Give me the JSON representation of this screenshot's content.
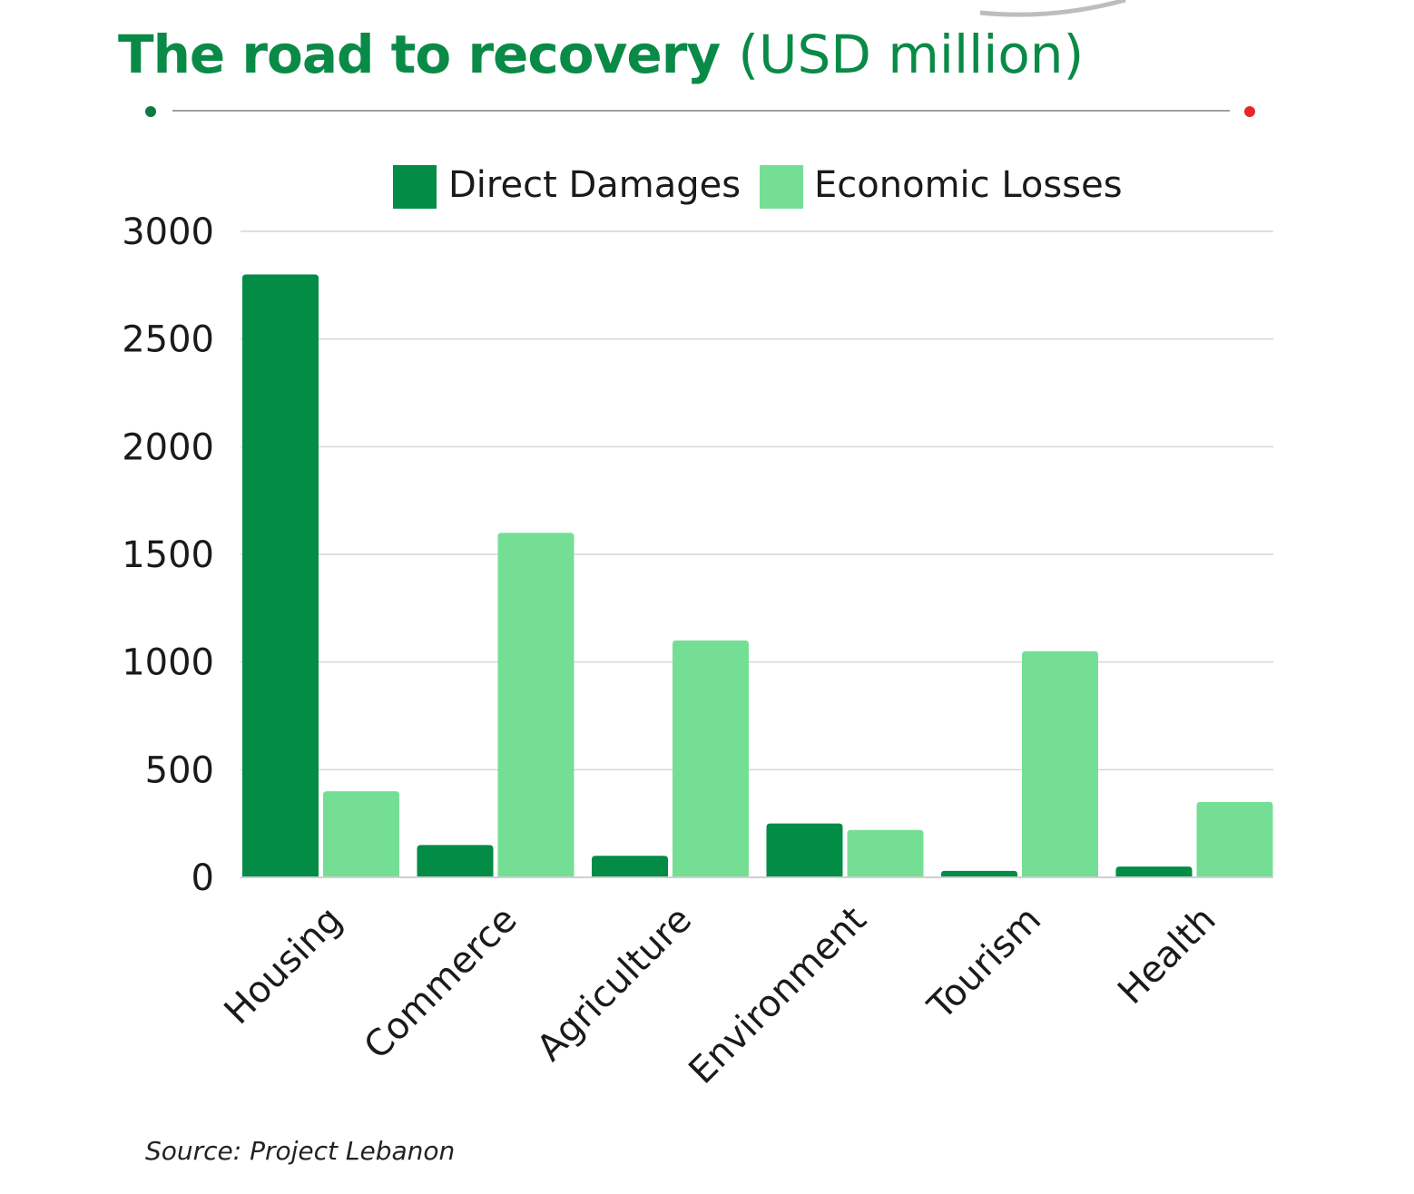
{
  "header": {
    "title_bold": "The road to recovery",
    "title_unit": "(USD million)"
  },
  "colors": {
    "title": "#0a8a47",
    "direct_damages": "#038c45",
    "economic_losses": "#74df94",
    "divider_left_dot": "#0b7a45",
    "divider_right_dot": "#e8262a",
    "gridline": "#d6d6d6"
  },
  "chart_data": {
    "type": "bar",
    "title": "The road to recovery (USD million)",
    "categories": [
      "Housing",
      "Commerce",
      "Agriculture",
      "Environment",
      "Tourism",
      "Health"
    ],
    "series": [
      {
        "name": "Direct Damages",
        "values": [
          2800,
          150,
          100,
          250,
          30,
          50
        ]
      },
      {
        "name": "Economic Losses",
        "values": [
          400,
          1600,
          1100,
          220,
          1050,
          350
        ]
      }
    ],
    "y_ticks": [
      0,
      500,
      1000,
      1500,
      2000,
      2500,
      3000
    ],
    "ylim": [
      0,
      3000
    ],
    "xlabel": "",
    "ylabel": "",
    "grid": true,
    "legend_position": "top"
  },
  "footer": {
    "source": "Source: Project Lebanon"
  }
}
